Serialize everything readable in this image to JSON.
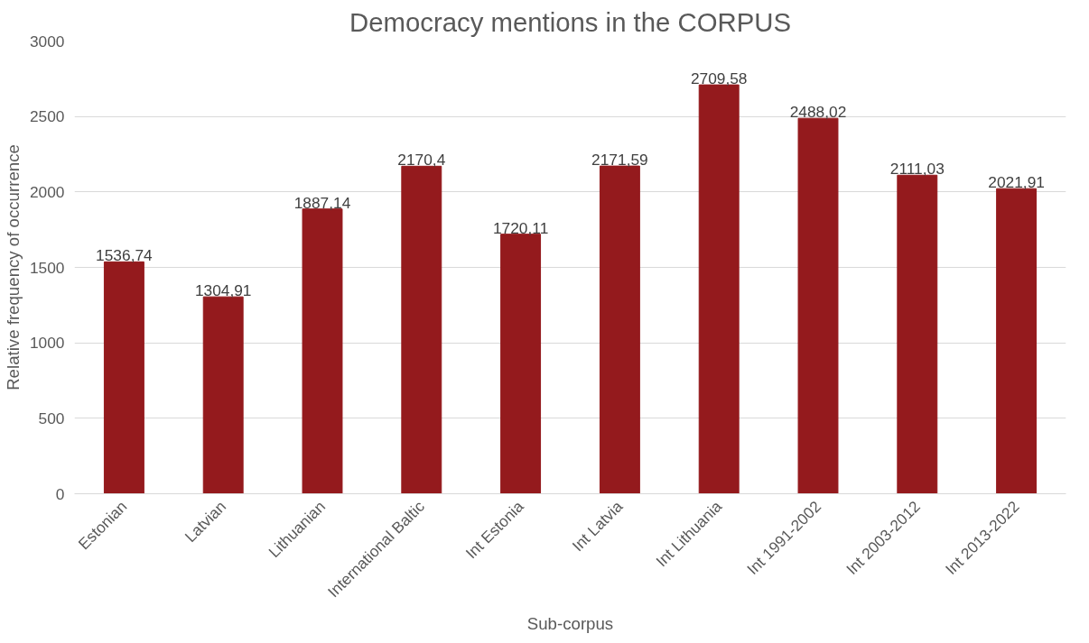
{
  "chart_data": {
    "type": "bar",
    "title": "Democracy mentions in the CORPUS",
    "xlabel": "Sub-corpus",
    "ylabel": "Relative frequency of occurrence",
    "categories": [
      "Estonian",
      "Latvian",
      "Lithuanian",
      "International Baltic",
      "Int Estonia",
      "Int Latvia",
      "Int Lithuania",
      "Int 1991-2002",
      "Int 2003-2012",
      "Int 2013-2022"
    ],
    "values": [
      1536.74,
      1304.91,
      1887.14,
      2170.4,
      1720.11,
      2171.59,
      2709.58,
      2488.02,
      2111.03,
      2021.91
    ],
    "value_labels": [
      "1536,74",
      "1304,91",
      "1887,14",
      "2170,4",
      "1720,11",
      "2171,59",
      "2709,58",
      "2488,02",
      "2111,03",
      "2021,91"
    ],
    "color": "#941a1d",
    "ylim": [
      0,
      3000
    ],
    "yticks": [
      0,
      500,
      1000,
      1500,
      2000,
      2500,
      3000
    ],
    "grid": "y"
  }
}
